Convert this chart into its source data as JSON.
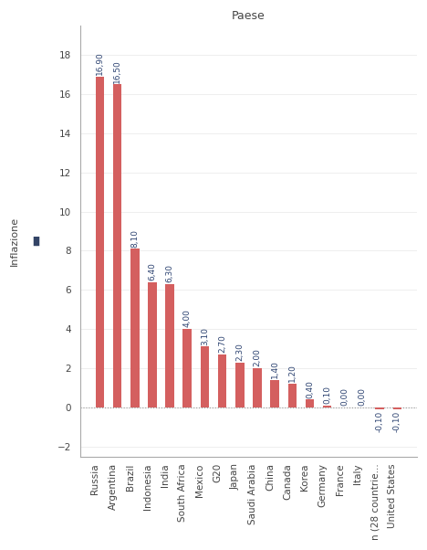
{
  "title": "Paese",
  "ylabel": "Inflazione",
  "categories": [
    "Russia",
    "Argentina",
    "Brazil",
    "Indonesia",
    "India",
    "South Africa",
    "Mexico",
    "G20",
    "Japan",
    "Saudi Arabia",
    "China",
    "Canada",
    "Korea",
    "Germany",
    "France",
    "Italy",
    "n (28 countrie...",
    "United States"
  ],
  "values": [
    16.9,
    16.5,
    8.1,
    6.4,
    6.3,
    4.0,
    3.1,
    2.7,
    2.3,
    2.0,
    1.4,
    1.2,
    0.4,
    0.1,
    0.0,
    0.0,
    -0.1,
    -0.1
  ],
  "bar_color": "#d45f5f",
  "label_color": "#2e4472",
  "axis_color": "#aaaaaa",
  "title_color": "#444444",
  "tick_color": "#444444",
  "background_color": "#ffffff",
  "ylim": [
    -2.5,
    19.5
  ],
  "yticks": [
    -2,
    0,
    2,
    4,
    6,
    8,
    10,
    12,
    14,
    16,
    18
  ],
  "title_fontsize": 9,
  "ylabel_fontsize": 8,
  "tick_fontsize": 7.5,
  "label_fontsize": 6.5,
  "bar_width": 0.5
}
